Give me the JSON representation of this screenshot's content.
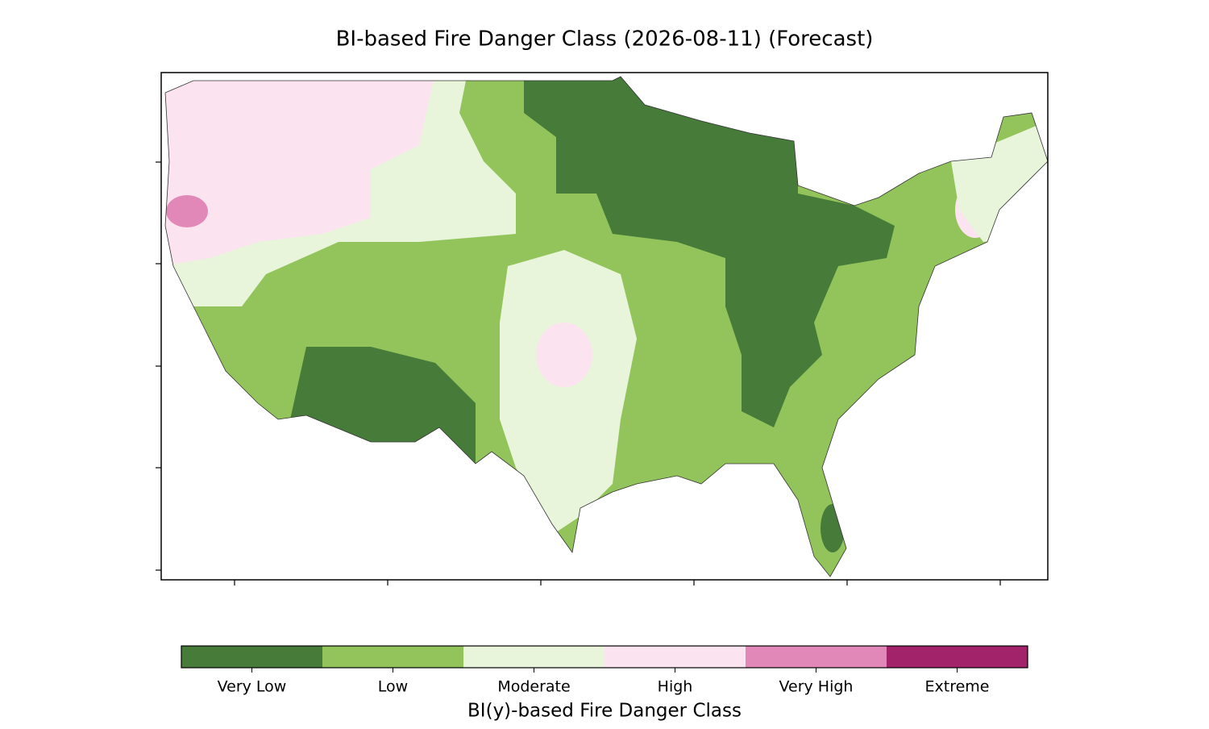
{
  "title": "BI-based Fire Danger Class (2026-08-11) (Forecast)",
  "colorbar": {
    "label": "BI(y)-based Fire Danger Class",
    "classes": [
      {
        "name": "Very Low",
        "color": "#467b3a"
      },
      {
        "name": "Low",
        "color": "#93c45b"
      },
      {
        "name": "Moderate",
        "color": "#e9f5db"
      },
      {
        "name": "High",
        "color": "#fbe3ef"
      },
      {
        "name": "Very High",
        "color": "#e188b8"
      },
      {
        "name": "Extreme",
        "color": "#a3236b"
      }
    ]
  }
}
